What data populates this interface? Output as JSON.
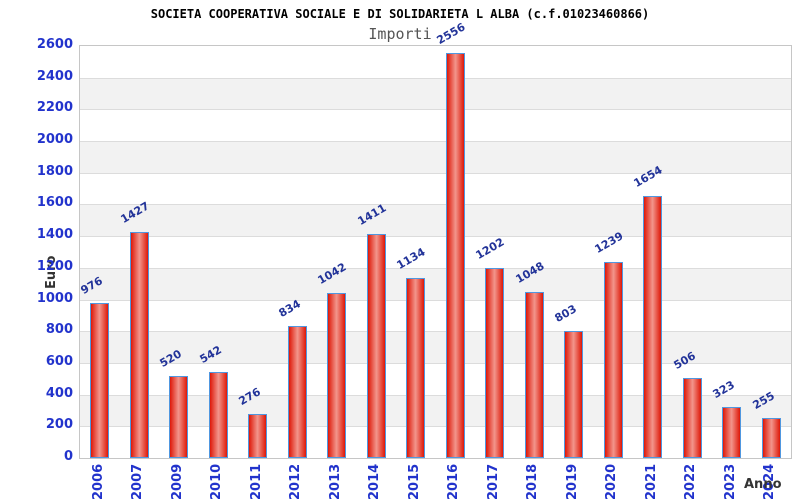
{
  "chart_data": {
    "type": "bar",
    "title": "SOCIETA COOPERATIVA SOCIALE E DI SOLIDARIETA L ALBA (c.f.01023460866)",
    "subtitle": "Importi",
    "xlabel": "Anno",
    "ylabel": "Euro",
    "categories": [
      "2006",
      "2007",
      "2009",
      "2010",
      "2011",
      "2012",
      "2013",
      "2014",
      "2015",
      "2016",
      "2017",
      "2018",
      "2019",
      "2020",
      "2021",
      "2022",
      "2023",
      "2024"
    ],
    "values": [
      976,
      1427,
      520,
      542,
      276,
      834,
      1042,
      1411,
      1134,
      2556,
      1202,
      1048,
      803,
      1239,
      1654,
      506,
      323,
      255
    ],
    "ylim": [
      0,
      2600
    ],
    "ytick_step": 200,
    "yticks": [
      "0",
      "200",
      "400",
      "600",
      "800",
      "1000",
      "1200",
      "1400",
      "1600",
      "1800",
      "2000",
      "2200",
      "2400",
      "2600"
    ],
    "grid": "horizontal gridlines with alternating background bands",
    "legend": null,
    "value_labels_shown": true,
    "value_label_rotation_deg": -30,
    "x_label_rotation_deg": -90
  },
  "colors": {
    "bar_fill_edge": "#de1808",
    "bar_fill_mid": "#f2968c",
    "bar_border": "#4f97e0",
    "tick_label_blue": "#2233cc",
    "value_label_navy": "#223399",
    "band_gray": "#f2f2f2",
    "band_white": "#ffffff",
    "gridline": "#dcdcdc",
    "plot_border": "#c6c6c6",
    "title_color": "#000000",
    "subtitle_color": "#555555",
    "axis_title_color": "#333333",
    "background": "#ffffff"
  }
}
